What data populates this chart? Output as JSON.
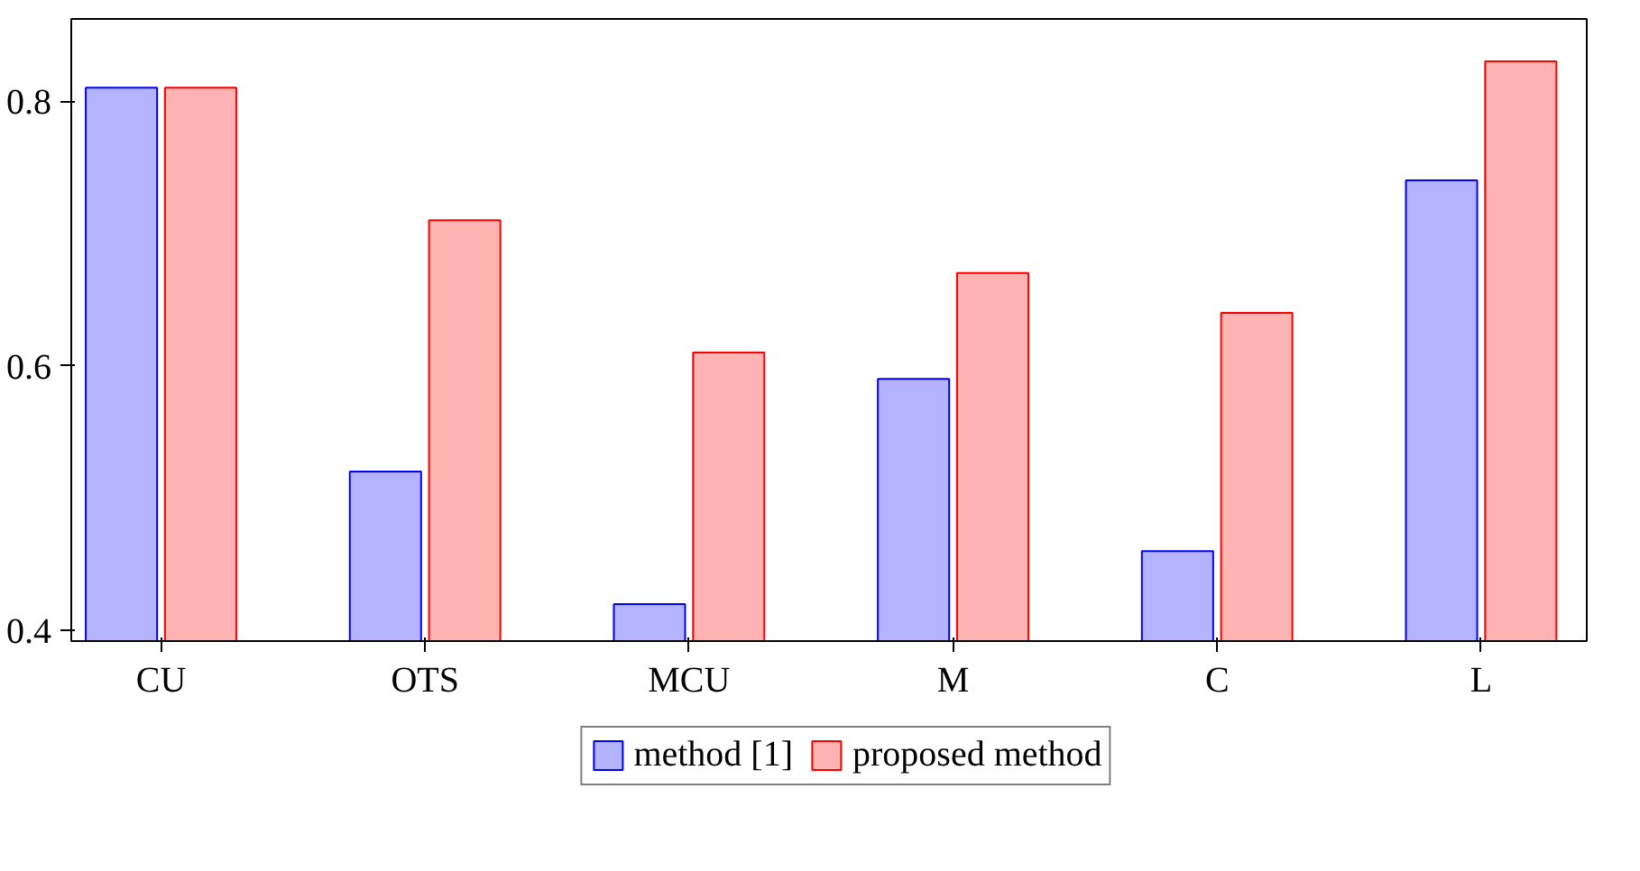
{
  "chart_data": {
    "type": "bar",
    "categories": [
      "CU",
      "OTS",
      "MCU",
      "M",
      "C",
      "L"
    ],
    "series": [
      {
        "name": "method [1]",
        "color": "#b3b3ff",
        "values": [
          0.81,
          0.52,
          0.42,
          0.59,
          0.46,
          0.74
        ]
      },
      {
        "name": "proposed method",
        "color": "#ffb3b3",
        "values": [
          0.81,
          0.71,
          0.61,
          0.67,
          0.64,
          0.83
        ]
      }
    ],
    "ylim": [
      0.392,
      0.862
    ],
    "yticks": [
      0.4,
      0.6,
      0.8
    ],
    "grid": false,
    "legend": "bottom"
  }
}
